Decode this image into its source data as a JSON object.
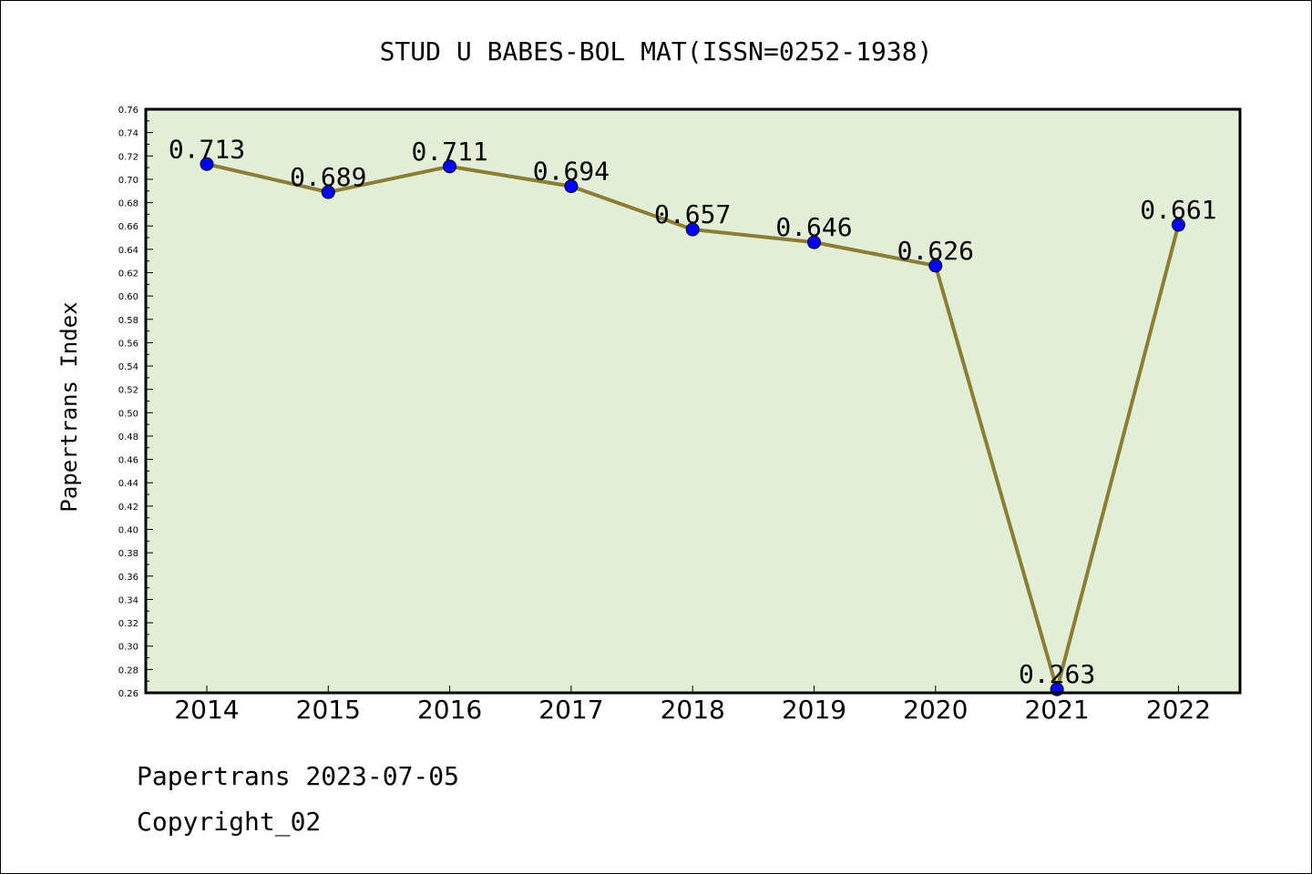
{
  "chart_data": {
    "type": "line",
    "title": "STUD U BABES-BOL MAT(ISSN=0252-1938)",
    "xlabel": "",
    "ylabel": "Papertrans Index",
    "categories": [
      "2014",
      "2015",
      "2016",
      "2017",
      "2018",
      "2019",
      "2020",
      "2021",
      "2022"
    ],
    "values": [
      0.713,
      0.689,
      0.711,
      0.694,
      0.657,
      0.646,
      0.626,
      0.263,
      0.661
    ],
    "data_labels": [
      "0.713",
      "0.689",
      "0.711",
      "0.694",
      "0.657",
      "0.646",
      "0.626",
      "0.263",
      "0.661"
    ],
    "ylim": [
      0.26,
      0.76
    ],
    "ytick_labels": [
      "0.26",
      "0.28",
      "0.30",
      "0.32",
      "0.34",
      "0.36",
      "0.38",
      "0.40",
      "0.42",
      "0.44",
      "0.46",
      "0.48",
      "0.50",
      "0.52",
      "0.54",
      "0.56",
      "0.58",
      "0.60",
      "0.62",
      "0.64",
      "0.66",
      "0.68",
      "0.70",
      "0.72",
      "0.74",
      "0.76"
    ],
    "grid": false,
    "colors": {
      "plot_background": "#e2efd6",
      "line": "#8b7d35",
      "marker": "#0000ff"
    }
  },
  "footer": {
    "line1": "Papertrans 2023-07-05",
    "line2": "Copyright_02"
  }
}
